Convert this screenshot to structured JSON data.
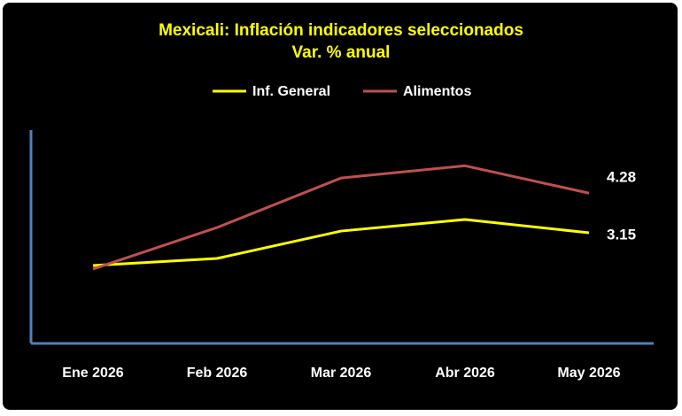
{
  "chart_data": {
    "type": "line",
    "title": "Mexicali: Inflación indicadores seleccionados",
    "subtitle": "Var. % anual",
    "categories": [
      "Ene 2026",
      "Feb 2026",
      "Mar 2026",
      "Abr 2026",
      "May 2026"
    ],
    "series": [
      {
        "name": "Inf. General",
        "color": "#ffff00",
        "values": [
          2.22,
          2.42,
          3.2,
          3.53,
          3.15
        ]
      },
      {
        "name": "Alimentos",
        "color": "#c0504d",
        "values": [
          2.12,
          3.3,
          4.71,
          5.06,
          4.28
        ]
      }
    ],
    "ylim": [
      0,
      6
    ],
    "axis_color": "#4f81bd"
  }
}
